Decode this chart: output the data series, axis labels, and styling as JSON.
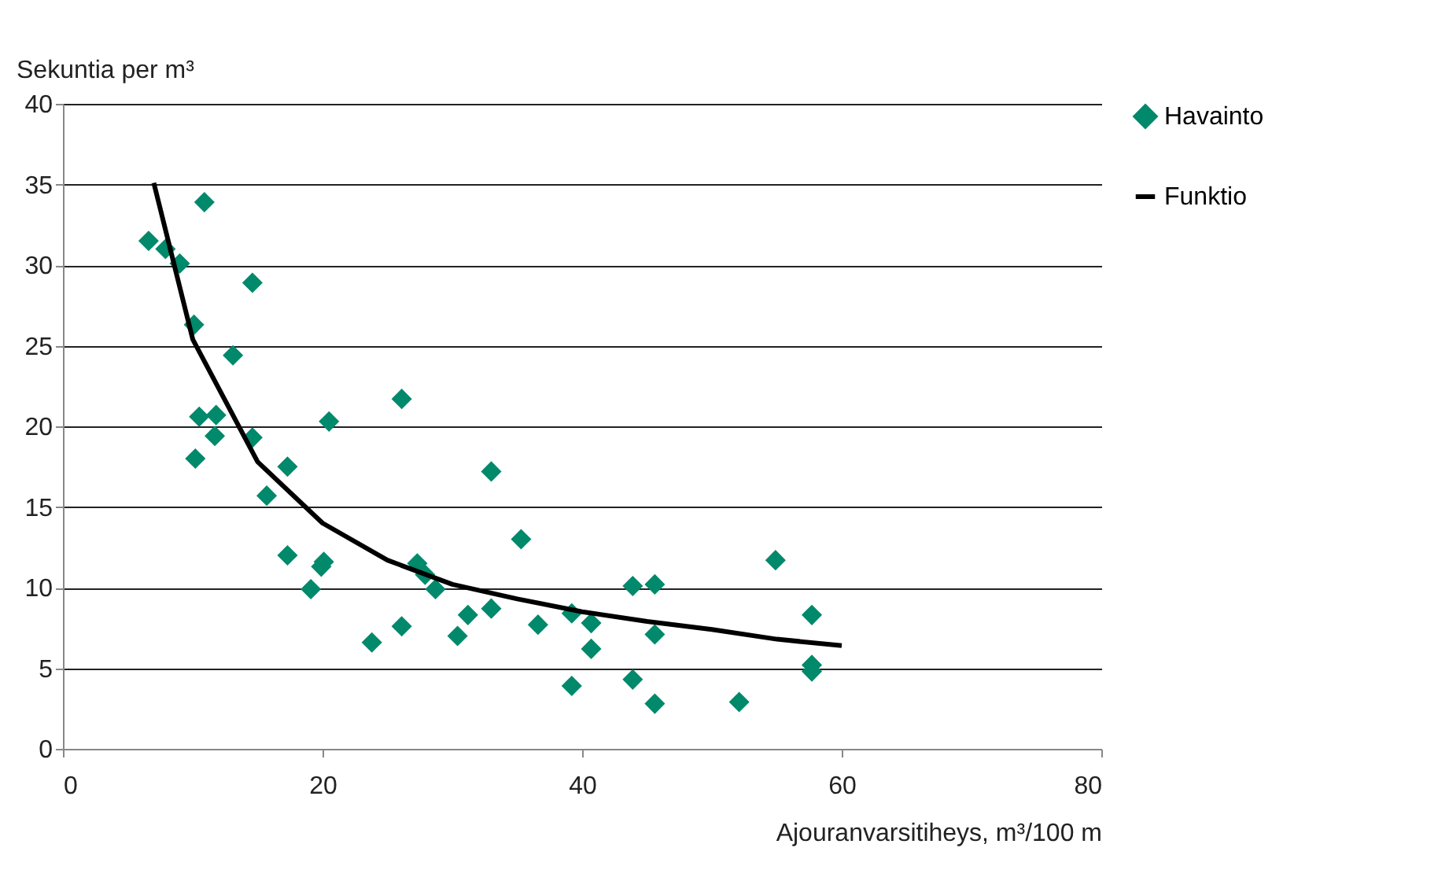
{
  "chart_data": {
    "type": "scatter",
    "xlabel": "Ajouranvarsitiheys, m³/100 m",
    "ylabel": "Sekuntia per m³",
    "xlim": [
      0,
      80
    ],
    "xticks": [
      0,
      20,
      40,
      60,
      80
    ],
    "ylim": [
      0,
      40
    ],
    "yticks": [
      0,
      5,
      10,
      15,
      20,
      25,
      30,
      35,
      40
    ],
    "grid": "y",
    "legend": "right",
    "series": [
      {
        "name": "Havainto",
        "marker": "diamond",
        "color": "#00896b",
        "x": [
          6.6,
          7.9,
          9.0,
          10.9,
          14.6,
          10.1,
          13.1,
          10.5,
          11.8,
          11.7,
          10.2,
          14.6,
          20.5,
          26.1,
          17.3,
          15.7,
          17.3,
          20.1,
          19.9,
          19.1,
          23.8,
          26.1,
          27.3,
          27.9,
          28.7,
          33.0,
          35.3,
          30.4,
          31.2,
          33.0,
          36.6,
          39.2,
          40.7,
          40.7,
          39.2,
          43.9,
          45.6,
          45.6,
          43.9,
          45.6,
          52.1,
          54.9,
          57.7,
          57.7,
          57.7
        ],
        "values": [
          31.5,
          31.0,
          30.1,
          33.9,
          28.9,
          26.3,
          24.4,
          20.6,
          20.7,
          19.4,
          18.0,
          19.3,
          20.3,
          21.7,
          17.5,
          15.7,
          12.0,
          11.6,
          11.3,
          9.9,
          6.6,
          7.6,
          11.5,
          10.8,
          9.9,
          17.2,
          13.0,
          7.0,
          8.3,
          8.7,
          7.7,
          8.4,
          7.8,
          6.2,
          3.9,
          10.1,
          10.2,
          7.1,
          4.3,
          2.8,
          2.9,
          11.7,
          8.3,
          5.2,
          4.8
        ]
      },
      {
        "name": "Funktio",
        "type": "line",
        "color": "#000000",
        "line_style": "solid",
        "x": [
          7,
          10,
          15,
          20,
          25,
          30,
          35,
          40,
          45,
          50,
          55,
          60
        ],
        "values": [
          35.1,
          25.4,
          17.8,
          14.0,
          11.7,
          10.2,
          9.3,
          8.5,
          7.9,
          7.4,
          6.8,
          6.4
        ]
      }
    ]
  }
}
